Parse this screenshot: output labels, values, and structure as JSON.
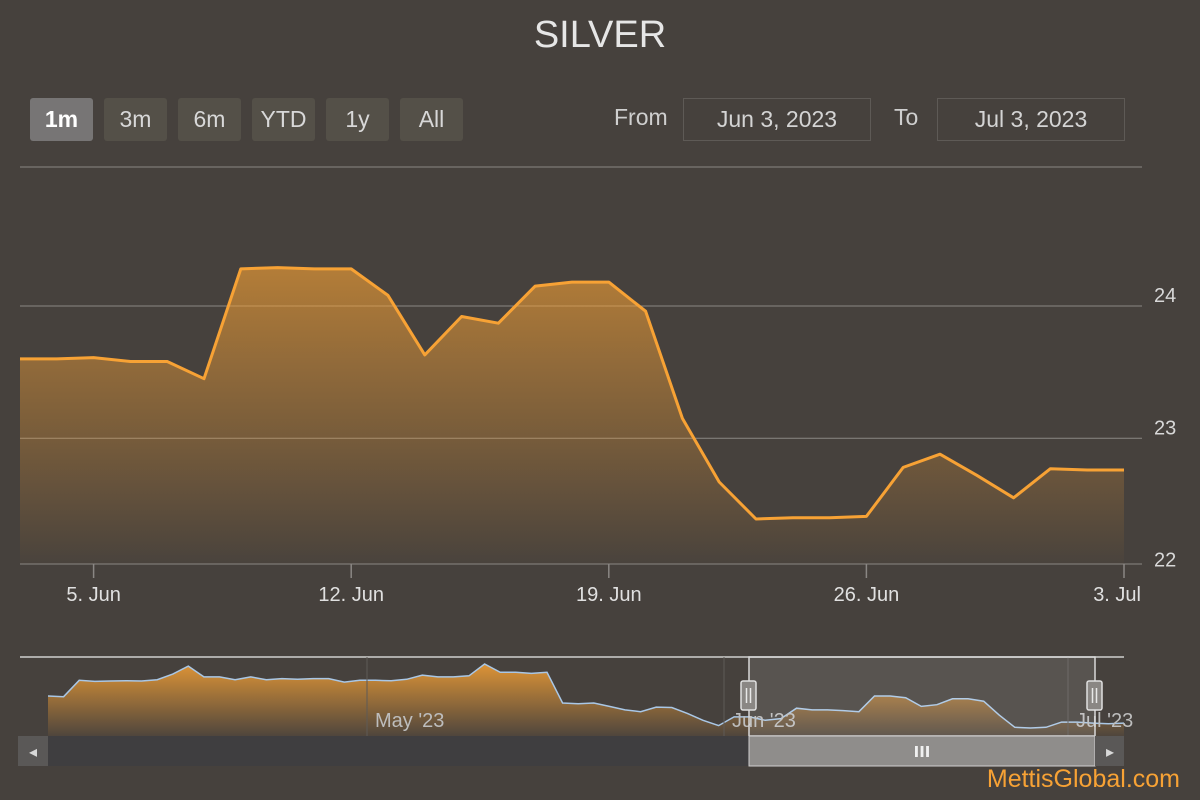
{
  "title": "SILVER",
  "range_selector": {
    "buttons": [
      "1m",
      "3m",
      "6m",
      "YTD",
      "1y",
      "All"
    ],
    "active": "1m"
  },
  "date_inputs": {
    "from_label": "From",
    "from_value": "Jun 3, 2023",
    "to_label": "To",
    "to_value": "Jul 3, 2023"
  },
  "colors": {
    "series": "#f7a235",
    "navigator_line": "#a9c7e6",
    "background": "#46413d"
  },
  "chart_data": {
    "type": "area",
    "title": "SILVER",
    "x_unit": "day",
    "x_start": "2023-06-03",
    "x_end": "2023-07-03",
    "x_ticks": [
      {
        "label": "5. Jun",
        "date": "2023-06-05"
      },
      {
        "label": "12. Jun",
        "date": "2023-06-12"
      },
      {
        "label": "19. Jun",
        "date": "2023-06-19"
      },
      {
        "label": "26. Jun",
        "date": "2023-06-26"
      },
      {
        "label": "3. Jul",
        "date": "2023-07-03"
      }
    ],
    "y_ticks": [
      22,
      23,
      24
    ],
    "ylim": [
      22.05,
      25.05
    ],
    "grid": true,
    "points": [
      [
        "2023-06-03",
        23.6
      ],
      [
        "2023-06-04",
        23.6
      ],
      [
        "2023-06-05",
        23.61
      ],
      [
        "2023-06-06",
        23.58
      ],
      [
        "2023-06-07",
        23.58
      ],
      [
        "2023-06-08",
        23.45
      ],
      [
        "2023-06-09",
        24.28
      ],
      [
        "2023-06-10",
        24.29
      ],
      [
        "2023-06-11",
        24.28
      ],
      [
        "2023-06-12",
        24.28
      ],
      [
        "2023-06-13",
        24.08
      ],
      [
        "2023-06-14",
        23.63
      ],
      [
        "2023-06-15",
        23.92
      ],
      [
        "2023-06-16",
        23.87
      ],
      [
        "2023-06-17",
        24.15
      ],
      [
        "2023-06-18",
        24.18
      ],
      [
        "2023-06-19",
        24.18
      ],
      [
        "2023-06-20",
        23.96
      ],
      [
        "2023-06-21",
        23.15
      ],
      [
        "2023-06-22",
        22.67
      ],
      [
        "2023-06-23",
        22.39
      ],
      [
        "2023-06-24",
        22.4
      ],
      [
        "2023-06-25",
        22.4
      ],
      [
        "2023-06-26",
        22.41
      ],
      [
        "2023-06-27",
        22.78
      ],
      [
        "2023-06-28",
        22.88
      ],
      [
        "2023-06-29",
        22.72
      ],
      [
        "2023-06-30",
        22.55
      ],
      [
        "2023-07-01",
        22.77
      ],
      [
        "2023-07-02",
        22.76
      ],
      [
        "2023-07-03",
        22.76
      ]
    ]
  },
  "navigator": {
    "x_labels": [
      "May '23",
      "Jun '23",
      "Jul '23"
    ],
    "scrollbar_grip": "III",
    "left_arrow": "◂",
    "right_arrow": "▸",
    "values": [
      23.8,
      23.78,
      24.25,
      24.22,
      24.23,
      24.24,
      24.23,
      24.27,
      24.43,
      24.66,
      24.35,
      24.35,
      24.27,
      24.35,
      24.27,
      24.3,
      24.28,
      24.3,
      24.3,
      24.2,
      24.25,
      24.25,
      24.24,
      24.28,
      24.4,
      24.35,
      24.35,
      24.38,
      24.72,
      24.48,
      24.48,
      24.45,
      24.48,
      23.6,
      23.58,
      23.6,
      23.5,
      23.4,
      23.35,
      23.48,
      23.47,
      23.3,
      23.1,
      22.95,
      23.2,
      23.2,
      23.1,
      23.15,
      23.45,
      23.4,
      23.4,
      23.38,
      23.35,
      23.8,
      23.8,
      23.75,
      23.5,
      23.55,
      23.72,
      23.72,
      23.65,
      23.25,
      22.9,
      22.88,
      22.9,
      23.05,
      23.05,
      23.02,
      23.0,
      23.02
    ]
  },
  "watermark": "MettisGlobal.com"
}
